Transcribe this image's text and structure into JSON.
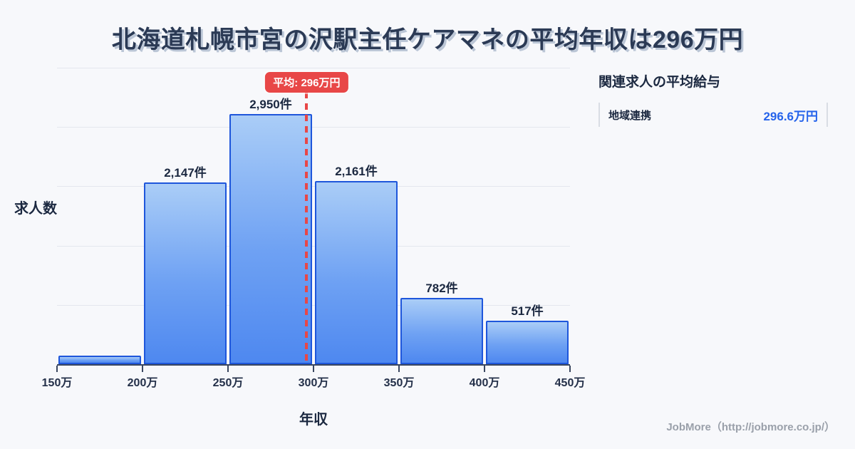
{
  "title": "北海道札幌市宮の沢駅主任ケアマネの平均年収は296万円",
  "colors": {
    "background": "#f7f8fb",
    "bar_border": "#1e56db",
    "bar_fill_top": "#aacdf7",
    "bar_fill_bottom": "#4e88f0",
    "average_red": "#e84747",
    "value_blue": "#2563eb",
    "text_dark": "#1b2840",
    "footer_gray": "#9aa0aa"
  },
  "chart_data": {
    "type": "bar",
    "title": "",
    "xlabel": "年収",
    "ylabel": "求人数",
    "x_tick_labels": [
      "150万",
      "200万",
      "250万",
      "300万",
      "350万",
      "400万",
      "450万"
    ],
    "bin_edges": [
      150,
      200,
      250,
      300,
      350,
      400,
      450
    ],
    "values": [
      100,
      2147,
      2950,
      2161,
      782,
      517
    ],
    "bar_labels": [
      "",
      "2,147件",
      "2,950件",
      "2,161件",
      "782件",
      "517件"
    ],
    "ylim": [
      0,
      3500
    ],
    "gridline_step": 700,
    "grid": true,
    "legend": "none",
    "average": {
      "value": 296,
      "label": "平均: 296万円"
    }
  },
  "side_panel": {
    "heading": "関連求人の平均給与",
    "rows": [
      {
        "label": "地域連携",
        "value": "296.6万円"
      }
    ]
  },
  "footer": {
    "credit": "JobMore（http://jobmore.co.jp/）"
  }
}
